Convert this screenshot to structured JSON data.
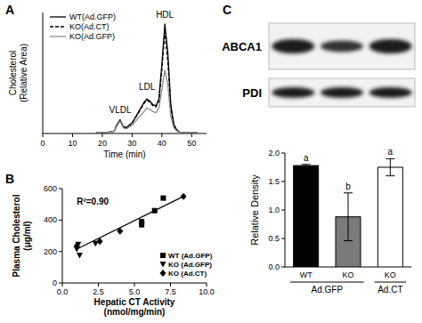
{
  "chart_data": [
    {
      "panel": "A",
      "type": "line",
      "x_label": "Time (min)",
      "y_label": [
        "Cholesterol",
        "(Relative Area)"
      ],
      "x": [
        18,
        20,
        22,
        24,
        25,
        26,
        27,
        28,
        30,
        32,
        34,
        35,
        36,
        37,
        38,
        39,
        40,
        41,
        42,
        43,
        44,
        45,
        46,
        48,
        50,
        52
      ],
      "series": [
        {
          "name": "WT(Ad.GFP)",
          "color": "#000000",
          "line_style": "solid",
          "values": [
            1,
            1,
            1,
            2,
            8,
            12,
            6,
            5,
            9,
            18,
            27,
            30,
            28,
            25,
            24,
            30,
            60,
            95,
            70,
            25,
            8,
            3,
            1,
            1,
            1,
            1
          ]
        },
        {
          "name": "KO(Ad.CT)",
          "color": "#000000",
          "line_style": "dashed",
          "values": [
            1,
            1,
            1,
            2,
            8,
            11,
            6,
            5,
            9,
            17,
            26,
            29,
            27,
            24,
            23,
            28,
            55,
            88,
            62,
            22,
            7,
            3,
            1,
            1,
            1,
            1
          ]
        },
        {
          "name": "KO(Ad.GFP)",
          "color": "#8a8a8a",
          "line_style": "solid",
          "values": [
            1,
            1,
            1,
            2,
            7,
            11,
            5,
            4,
            7,
            13,
            19,
            22,
            21,
            19,
            18,
            22,
            38,
            55,
            42,
            15,
            5,
            2,
            1,
            1,
            1,
            1
          ]
        }
      ],
      "annotations": [
        {
          "text": "VLDL",
          "x": 26,
          "y": 16
        },
        {
          "text": "LDL",
          "x": 35,
          "y": 36
        },
        {
          "text": "HDL",
          "x": 41,
          "y": 99
        }
      ],
      "xlim": [
        0,
        55
      ],
      "xticks": [
        0,
        10,
        20,
        30,
        40,
        50
      ],
      "ylim": [
        0,
        105
      ],
      "yticks": [],
      "tick_labels": "x",
      "legend": "upper left"
    },
    {
      "panel": "B",
      "type": "scatter",
      "x_label": [
        "Hepatic CT Activity",
        "(nmol/mg/min)"
      ],
      "y_label": [
        "Plasma Cholesterol",
        "(μg/ml)"
      ],
      "series": [
        {
          "name": "WT (Ad.GFP)",
          "color": "#000000",
          "marker": "square",
          "x": [
            5.5,
            5.5,
            6.4,
            7.0
          ],
          "values": [
            390,
            370,
            460,
            540
          ]
        },
        {
          "name": "KO (Ad.GFP)",
          "color": "#000000",
          "marker": "triangle-down",
          "x": [
            1.0,
            1.2,
            2.3,
            1.1
          ],
          "values": [
            215,
            175,
            250,
            245
          ]
        },
        {
          "name": "KO (Ad.CT)",
          "color": "#000000",
          "marker": "diamond",
          "x": [
            1.0,
            2.6,
            4.0,
            5.5,
            8.4
          ],
          "values": [
            235,
            265,
            330,
            385,
            550
          ]
        },
        {
          "type": "line",
          "color": "#000000",
          "x": [
            1.0,
            8.5
          ],
          "values": [
            215,
            555
          ]
        }
      ],
      "annotations": [
        {
          "text": "R²=0.90",
          "x": 1.0,
          "y": 500
        }
      ],
      "xlim": [
        0,
        10
      ],
      "xticks": [
        {
          "value": 0,
          "label": "0.0"
        },
        {
          "value": 2.5,
          "label": "2.5"
        },
        {
          "value": 5,
          "label": "5.0"
        },
        {
          "value": 7.5,
          "label": "7.5"
        },
        {
          "value": 10,
          "label": "10.0"
        }
      ],
      "ylim": [
        0,
        600
      ],
      "yticks": [
        0,
        200,
        400,
        600
      ],
      "legend": "lower right"
    },
    {
      "panel": "C",
      "type": "bar",
      "y_label": "Relative Density",
      "blot_labels": [
        "ABCA1",
        "PDI"
      ],
      "categories": [
        "WT",
        "KO",
        "KO"
      ],
      "values": [
        1.78,
        0.88,
        1.75
      ],
      "errors": [
        0.02,
        0.42,
        0.15
      ],
      "letters": [
        "a",
        "b",
        "a"
      ],
      "colors": [
        "#000000",
        "#7a7a7a",
        "#ffffff"
      ],
      "groups": [
        {
          "label": "Ad.GFP",
          "size": 2
        },
        {
          "label": "Ad.CT",
          "size": 1
        }
      ],
      "ylim": [
        0,
        2
      ],
      "yticks": [
        {
          "value": 0,
          "label": "0.0"
        },
        {
          "value": 0.5,
          "label": "0.5"
        },
        {
          "value": 1,
          "label": "1.0"
        },
        {
          "value": 1.5,
          "label": "1.5"
        },
        {
          "value": 2,
          "label": "2.0"
        }
      ]
    }
  ]
}
